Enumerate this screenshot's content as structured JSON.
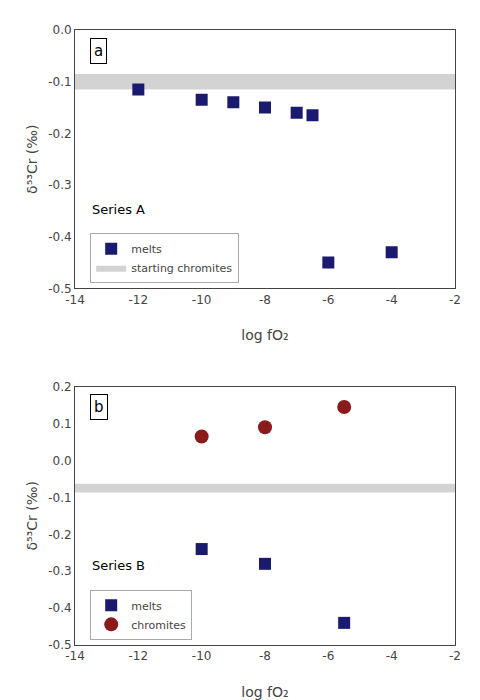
{
  "chart_data": [
    {
      "type": "scatter",
      "label": "a",
      "annotations": [
        "Series A"
      ],
      "xlabel": "log fO₂",
      "ylabel": "δ⁵³Cr (‰)",
      "series": [
        {
          "name": "melts",
          "type": "scatter",
          "marker": "square",
          "color": "#1a1a6e",
          "x": [
            -12,
            -10,
            -9,
            -8,
            -7,
            -6.5,
            -6,
            -4
          ],
          "values": [
            -0.115,
            -0.135,
            -0.14,
            -0.15,
            -0.16,
            -0.165,
            -0.45,
            -0.43
          ]
        },
        {
          "name": "starting chromites",
          "type": "band",
          "color": "#d3d3d3",
          "values": [
            -0.115,
            -0.085
          ]
        }
      ],
      "xlim": [
        -14,
        -2
      ],
      "ylim": [
        -0.5,
        0.0
      ],
      "xticks": [
        -14,
        -12,
        -10,
        -8,
        -6,
        -4,
        -2
      ],
      "yticks": [
        {
          "value": 0.0,
          "label": "0.0"
        },
        -0.1,
        -0.2,
        -0.3,
        -0.4,
        -0.5
      ],
      "grid": false,
      "legend": "lower left"
    },
    {
      "type": "scatter",
      "label": "b",
      "annotations": [
        "Series B"
      ],
      "xlabel": "log fO₂",
      "ylabel": "δ⁵³Cr (‰)",
      "series": [
        {
          "type": "band",
          "color": "#d3d3d3",
          "values": [
            -0.087,
            -0.063
          ]
        },
        {
          "name": "melts",
          "type": "scatter",
          "marker": "square",
          "color": "#1a1a6e",
          "x": [
            -10,
            -8,
            -5.5
          ],
          "values": [
            -0.24,
            -0.28,
            -0.44
          ]
        },
        {
          "name": "chromites",
          "type": "scatter",
          "marker": "circle",
          "color": "#8b1a1a",
          "x": [
            -10,
            -8,
            -5.5
          ],
          "values": [
            0.065,
            0.09,
            0.145
          ]
        }
      ],
      "xlim": [
        -14,
        -2
      ],
      "ylim": [
        -0.5,
        0.2
      ],
      "xticks": [
        -14,
        -12,
        -10,
        -8,
        -6,
        -4,
        -2
      ],
      "yticks": [
        0.2,
        0.1,
        {
          "value": 0.0,
          "label": "0.0"
        },
        -0.1,
        -0.2,
        -0.3,
        -0.4,
        -0.5
      ],
      "grid": false,
      "legend": "lower left"
    }
  ]
}
